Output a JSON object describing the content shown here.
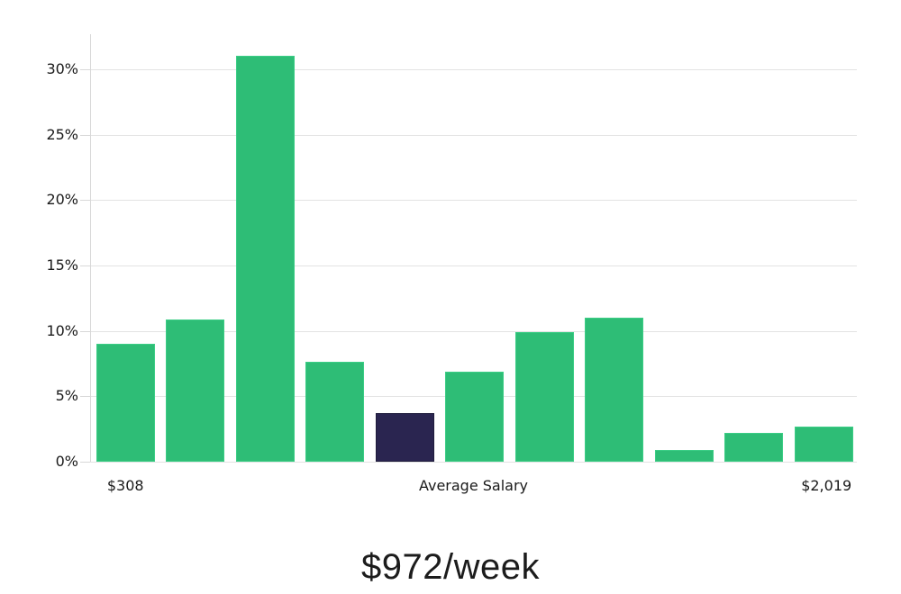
{
  "chart_data": {
    "type": "bar",
    "title": "$972/week",
    "xlabel": "",
    "ylabel": "",
    "grid": true,
    "legend": null,
    "ylim": [
      0,
      32.7
    ],
    "y_tick_values": [
      0,
      5,
      10,
      15,
      20,
      25,
      30
    ],
    "y_tick_labels": [
      "0%",
      "5%",
      "10%",
      "15%",
      "20%",
      "25%",
      "30%"
    ],
    "values": [
      9.0,
      10.9,
      31.0,
      7.6,
      3.7,
      6.9,
      9.9,
      11.0,
      0.9,
      2.2,
      2.7
    ],
    "highlight_index": 4,
    "x_axis_labels": {
      "left": "$308",
      "center": "Average Salary",
      "right": "$2,019"
    },
    "colors": {
      "bar": "#2ebd76",
      "bar_border": "#3bcd85",
      "bar_highlight": "#2a2550",
      "bar_highlight_border": "#1f1b3c",
      "gridline": "#e3e3e3",
      "axis_line": "#d8d8d8",
      "tick_text": "#1a1a1a",
      "title_text": "#1c1c1c"
    }
  }
}
